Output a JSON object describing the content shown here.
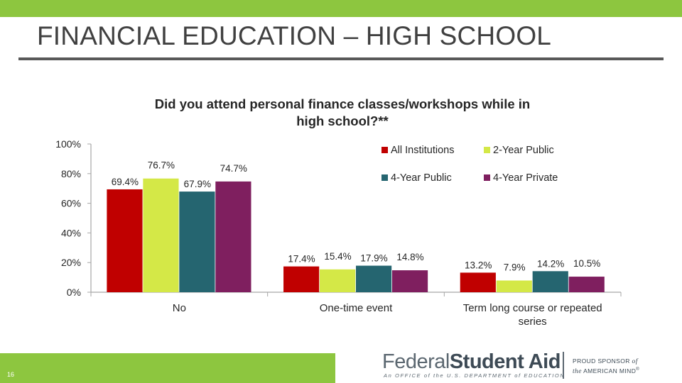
{
  "slide": {
    "title": "FINANCIAL EDUCATION – HIGH SCHOOL",
    "page_number": "16"
  },
  "colors": {
    "top_bar": "#8dc63f",
    "all_institutions": "#c00000",
    "two_year_public": "#d4e847",
    "four_year_public": "#256570",
    "four_year_private": "#7f1f5f"
  },
  "chart_data": {
    "type": "bar",
    "title": "Did you attend personal finance classes/workshops while in high school?**",
    "categories": [
      "No",
      "One-time event",
      "Term long course or repeated series"
    ],
    "series": [
      {
        "name": "All Institutions",
        "values": [
          69.4,
          17.4,
          13.2
        ],
        "labels": [
          "69.4%",
          "17.4%",
          "13.2%"
        ]
      },
      {
        "name": "2-Year Public",
        "values": [
          76.7,
          15.4,
          7.9
        ],
        "labels": [
          "76.7%",
          "15.4%",
          "7.9%"
        ]
      },
      {
        "name": "4-Year Public",
        "values": [
          67.9,
          17.9,
          14.2
        ],
        "labels": [
          "67.9%",
          "17.9%",
          "14.2%"
        ]
      },
      {
        "name": "4-Year Private",
        "values": [
          74.7,
          14.8,
          10.5
        ],
        "labels": [
          "74.7%",
          "14.8%",
          "10.5%"
        ]
      }
    ],
    "yticks": [
      "0%",
      "20%",
      "40%",
      "60%",
      "80%",
      "100%"
    ],
    "ylim": [
      0,
      100
    ],
    "legend": "top-right",
    "grid": false
  },
  "footer": {
    "brand_word1": "Federal",
    "brand_word2": "Student Aid",
    "tagline": "An OFFICE of the U.S. DEPARTMENT of EDUCATION",
    "sponsor_line1": "PROUD SPONSOR",
    "sponsor_of": "of",
    "sponsor_the": "the",
    "sponsor_line2": "AMERICAN MIND",
    "sponsor_mark": "®"
  }
}
